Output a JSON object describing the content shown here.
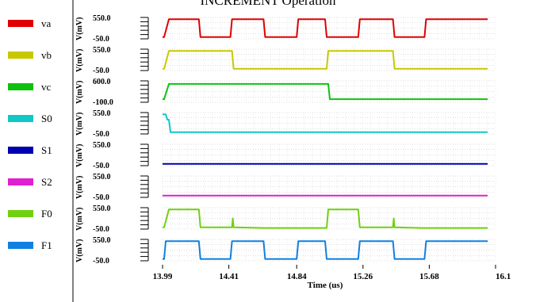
{
  "chart_data": {
    "type": "line",
    "title": "INCREMENT Operation",
    "xlabel": "Time (us)",
    "x_ticks": [
      "13.99",
      "14.41",
      "14.84",
      "15.26",
      "15.68",
      "16.1"
    ],
    "xlim": [
      13.99,
      16.1
    ],
    "grid": true,
    "legend_position": "left",
    "y_unit_label": "V(mV)",
    "series": [
      {
        "name": "va",
        "color": "#e00000",
        "ylim": [
          -50,
          550
        ],
        "y_ticks": [
          "550.0",
          "-50.0"
        ],
        "x": [
          13.99,
          14.0,
          14.03,
          14.22,
          14.23,
          14.42,
          14.43,
          14.63,
          14.64,
          14.84,
          14.85,
          15.02,
          15.03,
          15.23,
          15.24,
          15.45,
          15.46,
          15.65,
          15.66,
          16.05
        ],
        "y": [
          0,
          0,
          500,
          500,
          0,
          0,
          500,
          500,
          0,
          0,
          500,
          500,
          0,
          0,
          500,
          500,
          0,
          0,
          500,
          500
        ]
      },
      {
        "name": "vb",
        "color": "#c8c800",
        "ylim": [
          -50,
          550
        ],
        "y_ticks": [
          "550.0",
          "-50.0"
        ],
        "x": [
          13.99,
          14.0,
          14.03,
          14.43,
          14.44,
          15.03,
          15.04,
          15.45,
          15.46,
          16.05
        ],
        "y": [
          0,
          0,
          500,
          500,
          0,
          0,
          500,
          500,
          0,
          0
        ]
      },
      {
        "name": "vc",
        "color": "#10c010",
        "ylim": [
          -100,
          600
        ],
        "y_ticks": [
          "600.0",
          "-100.0"
        ],
        "x": [
          13.99,
          14.0,
          14.03,
          15.04,
          15.05,
          16.05
        ],
        "y": [
          0,
          0,
          500,
          500,
          0,
          0
        ]
      },
      {
        "name": "S0",
        "color": "#10c8c8",
        "ylim": [
          -50,
          550
        ],
        "y_ticks": [
          "550.0",
          "-50.0"
        ],
        "x": [
          13.99,
          14.01,
          14.02,
          14.03,
          14.04,
          16.05
        ],
        "y": [
          500,
          500,
          350,
          350,
          0,
          0
        ]
      },
      {
        "name": "S1",
        "color": "#0000b0",
        "ylim": [
          -50,
          550
        ],
        "y_ticks": [
          "550.0",
          "-50.0"
        ],
        "x": [
          13.99,
          16.05
        ],
        "y": [
          0,
          0
        ]
      },
      {
        "name": "S2",
        "color": "#e020d0",
        "ylim": [
          -50,
          550
        ],
        "y_ticks": [
          "550.0",
          "-50.0"
        ],
        "x": [
          13.99,
          16.05
        ],
        "y": [
          0,
          0
        ]
      },
      {
        "name": "F0",
        "color": "#70d010",
        "ylim": [
          -50,
          550
        ],
        "y_ticks": [
          "550.0",
          "-50.0"
        ],
        "x": [
          13.99,
          14.0,
          14.03,
          14.22,
          14.23,
          14.43,
          14.435,
          14.44,
          14.64,
          15.03,
          15.04,
          15.23,
          15.24,
          15.45,
          15.455,
          15.46,
          15.64,
          16.05
        ],
        "y": [
          0,
          0,
          500,
          500,
          0,
          0,
          250,
          0,
          -20,
          -20,
          500,
          500,
          0,
          0,
          250,
          0,
          -20,
          -20
        ]
      },
      {
        "name": "F1",
        "color": "#1080e0",
        "ylim": [
          -50,
          550
        ],
        "y_ticks": [
          "550.0",
          "-50.0"
        ],
        "x": [
          13.99,
          14.0,
          14.01,
          14.22,
          14.23,
          14.42,
          14.43,
          14.63,
          14.64,
          14.84,
          14.85,
          15.02,
          15.03,
          15.23,
          15.24,
          15.45,
          15.46,
          15.65,
          15.66,
          16.05
        ],
        "y": [
          0,
          0,
          500,
          500,
          0,
          0,
          500,
          500,
          0,
          0,
          500,
          500,
          0,
          0,
          500,
          500,
          0,
          0,
          500,
          500
        ]
      }
    ]
  }
}
